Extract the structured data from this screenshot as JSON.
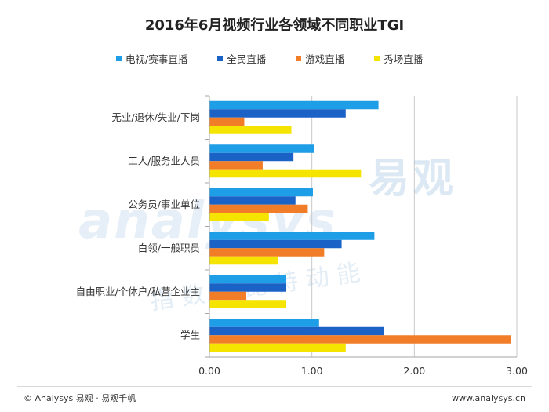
{
  "chart_data": {
    "type": "bar",
    "orientation": "horizontal",
    "title": "2016年6月视频行业各领域不同职业TGI",
    "categories": [
      "无业/退休/失业/下岗",
      "工人/服务业人员",
      "公务员/事业单位",
      "白领/一般职员",
      "自由职业/个体户/私营企业主",
      "学生"
    ],
    "series": [
      {
        "name": "电视/赛事直播",
        "color": "#1e9ee6",
        "values": [
          1.65,
          1.02,
          1.01,
          1.61,
          0.75,
          1.07
        ]
      },
      {
        "name": "全民直播",
        "color": "#1a62c6",
        "values": [
          1.33,
          0.82,
          0.84,
          1.29,
          0.75,
          1.7
        ]
      },
      {
        "name": "游戏直播",
        "color": "#f27d28",
        "values": [
          0.34,
          0.52,
          0.96,
          1.12,
          0.36,
          2.94
        ]
      },
      {
        "name": "秀场直播",
        "color": "#f5e300",
        "values": [
          0.8,
          1.48,
          0.58,
          0.67,
          0.75,
          1.33
        ]
      }
    ],
    "xlim": [
      0,
      3
    ],
    "xticks": [
      "0.00",
      "1.00",
      "2.00",
      "3.00"
    ],
    "grid": "vertical",
    "legend": "top"
  },
  "footer": {
    "left": "© Analysys 易观 · 易观千帆",
    "right": "www.analysys.cn"
  },
  "watermark": {
    "brand": "易观",
    "latin": "analysys",
    "slogan": "指数的比特动能"
  }
}
